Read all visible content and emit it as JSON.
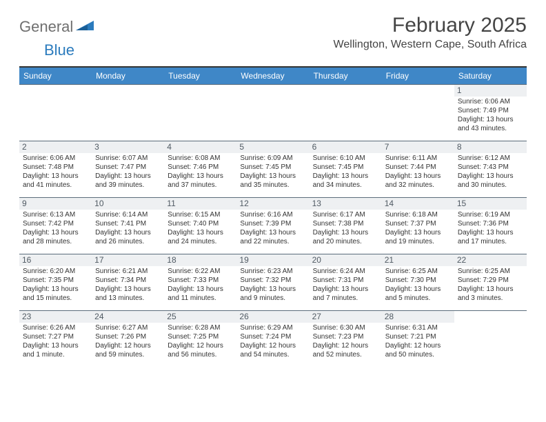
{
  "logo": {
    "general": "General",
    "blue": "Blue"
  },
  "title": "February 2025",
  "location": "Wellington, Western Cape, South Africa",
  "colors": {
    "header_bg": "#3f87c7",
    "header_text": "#ffffff",
    "border": "#5a6b7a",
    "daynum_bg": "#eef0f2",
    "text": "#333333",
    "logo_gray": "#6f6f6f",
    "logo_blue": "#2b7bbd"
  },
  "weekdays": [
    "Sunday",
    "Monday",
    "Tuesday",
    "Wednesday",
    "Thursday",
    "Friday",
    "Saturday"
  ],
  "layout": {
    "first_weekday_index": 6,
    "num_days": 28
  },
  "days": {
    "1": {
      "sunrise": "6:06 AM",
      "sunset": "7:49 PM",
      "daylight": "13 hours and 43 minutes."
    },
    "2": {
      "sunrise": "6:06 AM",
      "sunset": "7:48 PM",
      "daylight": "13 hours and 41 minutes."
    },
    "3": {
      "sunrise": "6:07 AM",
      "sunset": "7:47 PM",
      "daylight": "13 hours and 39 minutes."
    },
    "4": {
      "sunrise": "6:08 AM",
      "sunset": "7:46 PM",
      "daylight": "13 hours and 37 minutes."
    },
    "5": {
      "sunrise": "6:09 AM",
      "sunset": "7:45 PM",
      "daylight": "13 hours and 35 minutes."
    },
    "6": {
      "sunrise": "6:10 AM",
      "sunset": "7:45 PM",
      "daylight": "13 hours and 34 minutes."
    },
    "7": {
      "sunrise": "6:11 AM",
      "sunset": "7:44 PM",
      "daylight": "13 hours and 32 minutes."
    },
    "8": {
      "sunrise": "6:12 AM",
      "sunset": "7:43 PM",
      "daylight": "13 hours and 30 minutes."
    },
    "9": {
      "sunrise": "6:13 AM",
      "sunset": "7:42 PM",
      "daylight": "13 hours and 28 minutes."
    },
    "10": {
      "sunrise": "6:14 AM",
      "sunset": "7:41 PM",
      "daylight": "13 hours and 26 minutes."
    },
    "11": {
      "sunrise": "6:15 AM",
      "sunset": "7:40 PM",
      "daylight": "13 hours and 24 minutes."
    },
    "12": {
      "sunrise": "6:16 AM",
      "sunset": "7:39 PM",
      "daylight": "13 hours and 22 minutes."
    },
    "13": {
      "sunrise": "6:17 AM",
      "sunset": "7:38 PM",
      "daylight": "13 hours and 20 minutes."
    },
    "14": {
      "sunrise": "6:18 AM",
      "sunset": "7:37 PM",
      "daylight": "13 hours and 19 minutes."
    },
    "15": {
      "sunrise": "6:19 AM",
      "sunset": "7:36 PM",
      "daylight": "13 hours and 17 minutes."
    },
    "16": {
      "sunrise": "6:20 AM",
      "sunset": "7:35 PM",
      "daylight": "13 hours and 15 minutes."
    },
    "17": {
      "sunrise": "6:21 AM",
      "sunset": "7:34 PM",
      "daylight": "13 hours and 13 minutes."
    },
    "18": {
      "sunrise": "6:22 AM",
      "sunset": "7:33 PM",
      "daylight": "13 hours and 11 minutes."
    },
    "19": {
      "sunrise": "6:23 AM",
      "sunset": "7:32 PM",
      "daylight": "13 hours and 9 minutes."
    },
    "20": {
      "sunrise": "6:24 AM",
      "sunset": "7:31 PM",
      "daylight": "13 hours and 7 minutes."
    },
    "21": {
      "sunrise": "6:25 AM",
      "sunset": "7:30 PM",
      "daylight": "13 hours and 5 minutes."
    },
    "22": {
      "sunrise": "6:25 AM",
      "sunset": "7:29 PM",
      "daylight": "13 hours and 3 minutes."
    },
    "23": {
      "sunrise": "6:26 AM",
      "sunset": "7:27 PM",
      "daylight": "13 hours and 1 minute."
    },
    "24": {
      "sunrise": "6:27 AM",
      "sunset": "7:26 PM",
      "daylight": "12 hours and 59 minutes."
    },
    "25": {
      "sunrise": "6:28 AM",
      "sunset": "7:25 PM",
      "daylight": "12 hours and 56 minutes."
    },
    "26": {
      "sunrise": "6:29 AM",
      "sunset": "7:24 PM",
      "daylight": "12 hours and 54 minutes."
    },
    "27": {
      "sunrise": "6:30 AM",
      "sunset": "7:23 PM",
      "daylight": "12 hours and 52 minutes."
    },
    "28": {
      "sunrise": "6:31 AM",
      "sunset": "7:21 PM",
      "daylight": "12 hours and 50 minutes."
    }
  },
  "labels": {
    "sunrise": "Sunrise:",
    "sunset": "Sunset:",
    "daylight": "Daylight:"
  }
}
